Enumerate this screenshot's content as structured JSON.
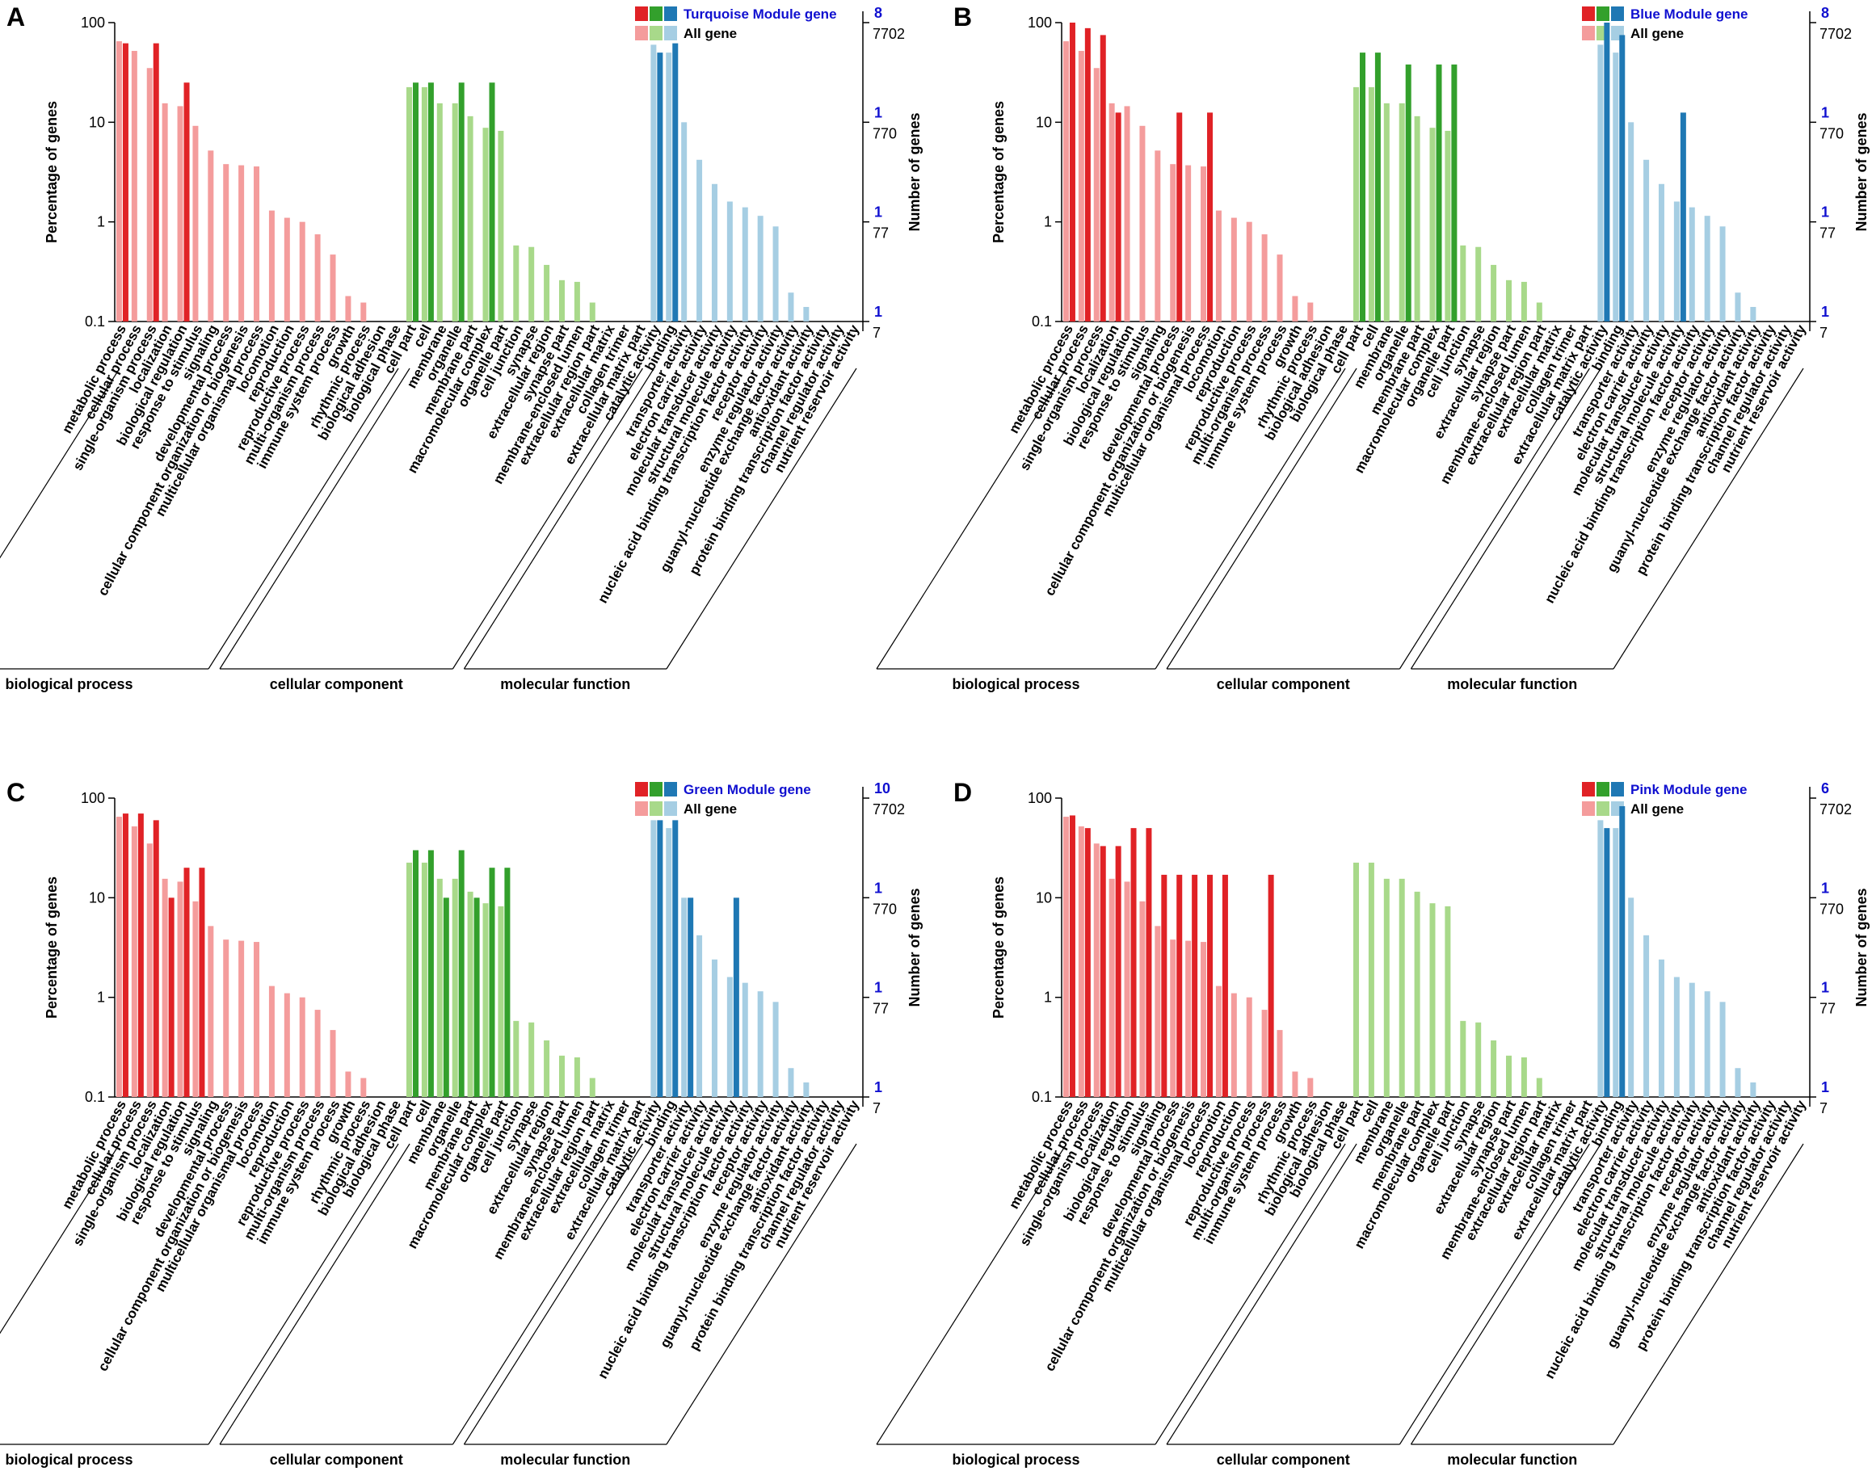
{
  "figure": {
    "left_axis_title": "Percentage of genes",
    "right_axis_title": "Number of genes",
    "left_ticks": [
      "100",
      "10",
      "1",
      "0.1"
    ],
    "groups": [
      "biological process",
      "cellular component",
      "molecular function"
    ],
    "colors": {
      "bp_module": "#e02226",
      "bp_all": "#f49c9c",
      "cc_module": "#33a02c",
      "cc_all": "#a8d98a",
      "mf_module": "#1f78b4",
      "mf_all": "#a6cee3",
      "axis_blue": "#1010d0"
    }
  },
  "chart_data": [
    {
      "panel": "A",
      "type": "bar",
      "title": "Turquoise Module gene vs All gene",
      "legend": {
        "module": "Turquoise Module gene",
        "all": "All gene"
      },
      "ylabel": "Percentage of genes",
      "y2label": "Number of genes",
      "yscale": "log",
      "ylim": [
        0.1,
        100
      ],
      "right_ticks_module": [
        "8",
        "1",
        "1",
        "1"
      ],
      "right_ticks_all": [
        "7702",
        "770",
        "77",
        "7"
      ],
      "categories": [
        "metabolic process",
        "cellular process",
        "single-organism process",
        "localization",
        "biological regulation",
        "response to stimulus",
        "signaling",
        "developmental process",
        "cellular component organization or biogenesis",
        "multicellular organismal process",
        "locomotion",
        "reproduction",
        "reproductive process",
        "multi-organism process",
        "immune system process",
        "growth",
        "rhythmic process",
        "biological adhesion",
        "biological phase",
        "cell part",
        "cell",
        "membrane",
        "organelle",
        "membrane part",
        "macromolecular complex",
        "organelle part",
        "cell junction",
        "synapse",
        "extracellular region",
        "synapse part",
        "membrane-enclosed lumen",
        "extracellular region part",
        "extracellular matrix",
        "collagen trimer",
        "extracellular matrix part",
        "catalytic activity",
        "binding",
        "transporter activity",
        "electron carrier activity",
        "molecular transducer activity",
        "structural molecule activity",
        "nucleic acid binding transcription factor activity",
        "receptor activity",
        "enzyme regulator activity",
        "guanyl-nucleotide exchange factor activity",
        "antioxidant activity",
        "protein binding transcription factor activity",
        "channel regulator activity",
        "nutrient reservoir activity"
      ],
      "groups": [
        "biological process",
        "cellular component",
        "molecular function"
      ],
      "group_sizes": [
        19,
        16,
        14
      ],
      "series": [
        {
          "name": "All gene",
          "values": [
            65,
            52,
            35,
            15.5,
            14.5,
            9.2,
            5.2,
            3.8,
            3.7,
            3.6,
            1.3,
            1.1,
            1.0,
            0.75,
            0.47,
            0.18,
            0.155,
            0,
            0,
            22.5,
            22.5,
            15.5,
            15.5,
            11.5,
            8.8,
            8.2,
            0.58,
            0.56,
            0.37,
            0.26,
            0.25,
            0.155,
            0,
            0,
            0,
            60,
            50,
            10,
            4.2,
            2.4,
            1.6,
            1.4,
            1.15,
            0.9,
            0.195,
            0.14,
            0,
            0,
            0
          ]
        },
        {
          "name": "Turquoise Module gene",
          "values": [
            62,
            0,
            62,
            0,
            25,
            0,
            0,
            0,
            0,
            0,
            0,
            0,
            0,
            0,
            0,
            0,
            0,
            0,
            0,
            25,
            25,
            0,
            25,
            0,
            25,
            0,
            0,
            0,
            0,
            0,
            0,
            0,
            0,
            0,
            0,
            50,
            62,
            0,
            0,
            0,
            0,
            0,
            0,
            0,
            0,
            0,
            0,
            0,
            0
          ]
        }
      ]
    },
    {
      "panel": "B",
      "type": "bar",
      "title": "Blue Module gene vs All gene",
      "legend": {
        "module": "Blue Module gene",
        "all": "All gene"
      },
      "ylabel": "Percentage of genes",
      "y2label": "Number of genes",
      "yscale": "log",
      "ylim": [
        0.1,
        100
      ],
      "right_ticks_module": [
        "8",
        "1",
        "1",
        "1"
      ],
      "right_ticks_all": [
        "7702",
        "770",
        "77",
        "7"
      ],
      "categories": [
        "metabolic process",
        "cellular process",
        "single-organism process",
        "localization",
        "biological regulation",
        "response to stimulus",
        "signaling",
        "developmental process",
        "cellular component organization or biogenesis",
        "multicellular organismal process",
        "locomotion",
        "reproduction",
        "reproductive process",
        "multi-organism process",
        "immune system process",
        "growth",
        "rhythmic process",
        "biological adhesion",
        "biological phase",
        "cell part",
        "cell",
        "membrane",
        "organelle",
        "membrane part",
        "macromolecular complex",
        "organelle part",
        "cell junction",
        "synapse",
        "extracellular region",
        "synapse part",
        "membrane-enclosed lumen",
        "extracellular region part",
        "extracellular matrix",
        "collagen trimer",
        "extracellular matrix part",
        "catalytic activity",
        "binding",
        "transporter activity",
        "electron carrier activity",
        "molecular transducer activity",
        "structural molecule activity",
        "nucleic acid binding transcription factor activity",
        "receptor activity",
        "enzyme regulator activity",
        "guanyl-nucleotide exchange factor activity",
        "antioxidant activity",
        "protein binding transcription factor activity",
        "channel regulator activity",
        "nutrient reservoir activity"
      ],
      "groups": [
        "biological process",
        "cellular component",
        "molecular function"
      ],
      "group_sizes": [
        19,
        16,
        14
      ],
      "series": [
        {
          "name": "All gene",
          "values": [
            65,
            52,
            35,
            15.5,
            14.5,
            9.2,
            5.2,
            3.8,
            3.7,
            3.6,
            1.3,
            1.1,
            1.0,
            0.75,
            0.47,
            0.18,
            0.155,
            0,
            0,
            22.5,
            22.5,
            15.5,
            15.5,
            11.5,
            8.8,
            8.2,
            0.58,
            0.56,
            0.37,
            0.26,
            0.25,
            0.155,
            0,
            0,
            0,
            60,
            50,
            10,
            4.2,
            2.4,
            1.6,
            1.4,
            1.15,
            0.9,
            0.195,
            0.14,
            0,
            0,
            0
          ]
        },
        {
          "name": "Blue Module gene",
          "values": [
            100,
            88,
            75,
            12.5,
            0,
            0,
            0,
            12.5,
            0,
            12.5,
            0,
            0,
            0,
            0,
            0,
            0,
            0,
            0,
            0,
            50,
            50,
            0,
            38,
            0,
            38,
            38,
            0,
            0,
            0,
            0,
            0,
            0,
            0,
            0,
            0,
            100,
            75,
            0,
            0,
            0,
            12.5,
            0,
            0,
            0,
            0,
            0,
            0,
            0,
            0
          ]
        }
      ]
    },
    {
      "panel": "C",
      "type": "bar",
      "title": "Green Module gene vs All gene",
      "legend": {
        "module": "Green Module gene",
        "all": "All gene"
      },
      "ylabel": "Percentage of genes",
      "y2label": "Number of genes",
      "yscale": "log",
      "ylim": [
        0.1,
        100
      ],
      "right_ticks_module": [
        "10",
        "1",
        "1",
        "1"
      ],
      "right_ticks_all": [
        "7702",
        "770",
        "77",
        "7"
      ],
      "categories": [
        "metabolic process",
        "cellular process",
        "single-organism process",
        "localization",
        "biological regulation",
        "response to stimulus",
        "signaling",
        "developmental process",
        "cellular component organization or biogenesis",
        "multicellular organismal process",
        "locomotion",
        "reproduction",
        "reproductive process",
        "multi-organism process",
        "immune system process",
        "growth",
        "rhythmic process",
        "biological adhesion",
        "biological phase",
        "cell part",
        "cell",
        "membrane",
        "organelle",
        "membrane part",
        "macromolecular complex",
        "organelle part",
        "cell junction",
        "synapse",
        "extracellular region",
        "synapse part",
        "membrane-enclosed lumen",
        "extracellular region part",
        "extracellular matrix",
        "collagen trimer",
        "extracellular matrix part",
        "catalytic activity",
        "binding",
        "transporter activity",
        "electron carrier activity",
        "molecular transducer activity",
        "structural molecule activity",
        "nucleic acid binding transcription factor activity",
        "receptor activity",
        "enzyme regulator activity",
        "guanyl-nucleotide exchange factor activity",
        "antioxidant activity",
        "protein binding transcription factor activity",
        "channel regulator activity",
        "nutrient reservoir activity"
      ],
      "groups": [
        "biological process",
        "cellular component",
        "molecular function"
      ],
      "group_sizes": [
        19,
        16,
        14
      ],
      "series": [
        {
          "name": "All gene",
          "values": [
            65,
            52,
            35,
            15.5,
            14.5,
            9.2,
            5.2,
            3.8,
            3.7,
            3.6,
            1.3,
            1.1,
            1.0,
            0.75,
            0.47,
            0.18,
            0.155,
            0,
            0,
            22.5,
            22.5,
            15.5,
            15.5,
            11.5,
            8.8,
            8.2,
            0.58,
            0.56,
            0.37,
            0.26,
            0.25,
            0.155,
            0,
            0,
            0,
            60,
            50,
            10,
            4.2,
            2.4,
            1.6,
            1.4,
            1.15,
            0.9,
            0.195,
            0.14,
            0,
            0,
            0
          ]
        },
        {
          "name": "Green Module gene",
          "values": [
            70,
            70,
            60,
            10,
            20,
            20,
            0,
            0,
            0,
            0,
            0,
            0,
            0,
            0,
            0,
            0,
            0,
            0,
            0,
            30,
            30,
            10,
            30,
            10,
            20,
            20,
            0,
            0,
            0,
            0,
            0,
            0,
            0,
            0,
            0,
            60,
            60,
            10,
            0,
            0,
            10,
            0,
            0,
            0,
            0,
            0,
            0,
            0,
            0
          ]
        }
      ]
    },
    {
      "panel": "D",
      "type": "bar",
      "title": "Pink Module gene vs All gene",
      "legend": {
        "module": "Pink Module gene",
        "all": "All gene"
      },
      "ylabel": "Percentage of genes",
      "y2label": "Number of genes",
      "yscale": "log",
      "ylim": [
        0.1,
        100
      ],
      "right_ticks_module": [
        "6",
        "1",
        "1",
        "1"
      ],
      "right_ticks_all": [
        "7702",
        "770",
        "77",
        "7"
      ],
      "categories": [
        "metabolic process",
        "cellular process",
        "single-organism process",
        "localization",
        "biological regulation",
        "response to stimulus",
        "signaling",
        "developmental process",
        "cellular component organization or biogenesis",
        "multicellular organismal process",
        "locomotion",
        "reproduction",
        "reproductive process",
        "multi-organism process",
        "immune system process",
        "growth",
        "rhythmic process",
        "biological adhesion",
        "biological phase",
        "cell part",
        "cell",
        "membrane",
        "organelle",
        "membrane part",
        "macromolecular complex",
        "organelle part",
        "cell junction",
        "synapse",
        "extracellular region",
        "synapse part",
        "membrane-enclosed lumen",
        "extracellular region part",
        "extracellular matrix",
        "collagen trimer",
        "extracellular matrix part",
        "catalytic activity",
        "binding",
        "transporter activity",
        "electron carrier activity",
        "molecular transducer activity",
        "structural molecule activity",
        "nucleic acid binding transcription factor activity",
        "receptor activity",
        "enzyme regulator activity",
        "guanyl-nucleotide exchange factor activity",
        "antioxidant activity",
        "protein binding transcription factor activity",
        "channel regulator activity",
        "nutrient reservoir activity"
      ],
      "groups": [
        "biological process",
        "cellular component",
        "molecular function"
      ],
      "group_sizes": [
        19,
        16,
        14
      ],
      "series": [
        {
          "name": "All gene",
          "values": [
            65,
            52,
            35,
            15.5,
            14.5,
            9.2,
            5.2,
            3.8,
            3.7,
            3.6,
            1.3,
            1.1,
            1.0,
            0.75,
            0.47,
            0.18,
            0.155,
            0,
            0,
            22.5,
            22.5,
            15.5,
            15.5,
            11.5,
            8.8,
            8.2,
            0.58,
            0.56,
            0.37,
            0.26,
            0.25,
            0.155,
            0,
            0,
            0,
            60,
            50,
            10,
            4.2,
            2.4,
            1.6,
            1.4,
            1.15,
            0.9,
            0.195,
            0.14,
            0,
            0,
            0
          ]
        },
        {
          "name": "Pink Module gene",
          "values": [
            67,
            50,
            33,
            33,
            50,
            50,
            17,
            17,
            17,
            17,
            17,
            0,
            0,
            17,
            0,
            0,
            0,
            0,
            0,
            0,
            0,
            0,
            0,
            0,
            0,
            0,
            0,
            0,
            0,
            0,
            0,
            0,
            0,
            0,
            0,
            50,
            83,
            0,
            0,
            0,
            0,
            0,
            0,
            0,
            0,
            0,
            0,
            0,
            0
          ]
        }
      ]
    }
  ]
}
